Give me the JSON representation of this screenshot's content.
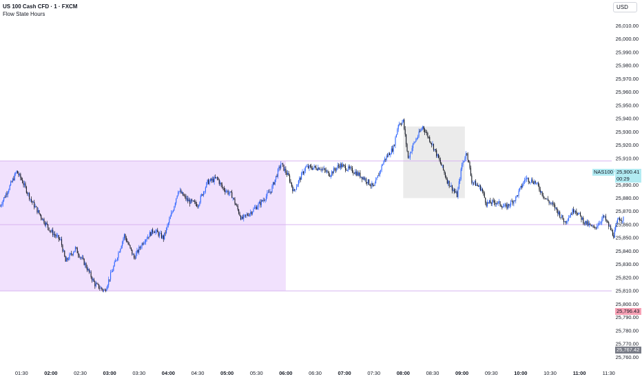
{
  "header": {
    "title": "US 100 Cash CFD · 1 · FXCM",
    "indicator": "Flow State Hours"
  },
  "currency_button": "USD",
  "colors": {
    "session_fill": "#f1e1fd",
    "session_line": "#d8b4f0",
    "box_fill": "#ebebeb",
    "up": "#2962ff",
    "down": "#131722",
    "symbol_badge_bg": "#b2ebf2",
    "low_badge_bg": "#f7a1b5",
    "prev_badge_bg": "#787b86"
  },
  "badges": {
    "symbol": "NAS100",
    "last_price": "25,900.41",
    "countdown": "00:29",
    "low_level": "25,796.43",
    "bottom_level": "25,767.42"
  },
  "chart_data": {
    "type": "candlestick",
    "y_ticks": [
      "26,010.00",
      "26,000.00",
      "25,990.00",
      "25,980.00",
      "25,970.00",
      "25,960.00",
      "25,950.00",
      "25,940.00",
      "25,930.00",
      "25,920.00",
      "25,910.00",
      "25,900.00",
      "25,890.00",
      "25,880.00",
      "25,870.00",
      "25,860.00",
      "25,850.00",
      "25,840.00",
      "25,830.00",
      "25,820.00",
      "25,810.00",
      "25,800.00",
      "25,790.00",
      "25,780.00",
      "25,770.00",
      "25,760.00"
    ],
    "x_ticks": [
      {
        "label": "01:30",
        "bold": false
      },
      {
        "label": "02:00",
        "bold": true
      },
      {
        "label": "02:30",
        "bold": false
      },
      {
        "label": "03:00",
        "bold": true
      },
      {
        "label": "03:30",
        "bold": false
      },
      {
        "label": "04:00",
        "bold": true
      },
      {
        "label": "04:30",
        "bold": false
      },
      {
        "label": "05:00",
        "bold": true
      },
      {
        "label": "05:30",
        "bold": false
      },
      {
        "label": "06:00",
        "bold": true
      },
      {
        "label": "06:30",
        "bold": false
      },
      {
        "label": "07:00",
        "bold": true
      },
      {
        "label": "07:30",
        "bold": false
      },
      {
        "label": "08:00",
        "bold": true
      },
      {
        "label": "08:30",
        "bold": false
      },
      {
        "label": "09:00",
        "bold": true
      },
      {
        "label": "09:30",
        "bold": false
      },
      {
        "label": "10:00",
        "bold": true
      },
      {
        "label": "10:30",
        "bold": false
      },
      {
        "label": "11:00",
        "bold": true
      },
      {
        "label": "11:30",
        "bold": false
      }
    ],
    "ylim": [
      25755,
      26018
    ],
    "x_start": "01:08",
    "x_minutes": 625,
    "session_zone": {
      "start": "01:08",
      "end": "06:00",
      "high": 25908,
      "low": 25810
    },
    "gray_box": {
      "start": "08:00",
      "end": "09:03",
      "high": 25934,
      "low": 25880
    },
    "levels": [
      25908,
      25860,
      25810
    ],
    "path": [
      [
        "01:08",
        25874
      ],
      [
        "01:20",
        25892
      ],
      [
        "01:25",
        25900
      ],
      [
        "01:30",
        25894
      ],
      [
        "01:40",
        25878
      ],
      [
        "01:50",
        25866
      ],
      [
        "02:00",
        25855
      ],
      [
        "02:10",
        25848
      ],
      [
        "02:15",
        25832
      ],
      [
        "02:25",
        25842
      ],
      [
        "02:35",
        25830
      ],
      [
        "02:45",
        25815
      ],
      [
        "02:55",
        25810
      ],
      [
        "03:05",
        25830
      ],
      [
        "03:15",
        25852
      ],
      [
        "03:25",
        25835
      ],
      [
        "03:35",
        25848
      ],
      [
        "03:45",
        25856
      ],
      [
        "03:55",
        25850
      ],
      [
        "04:05",
        25872
      ],
      [
        "04:10",
        25886
      ],
      [
        "04:20",
        25878
      ],
      [
        "04:30",
        25875
      ],
      [
        "04:40",
        25892
      ],
      [
        "04:50",
        25895
      ],
      [
        "04:55",
        25888
      ],
      [
        "05:05",
        25882
      ],
      [
        "05:15",
        25864
      ],
      [
        "05:25",
        25870
      ],
      [
        "05:35",
        25877
      ],
      [
        "05:45",
        25886
      ],
      [
        "05:55",
        25906
      ],
      [
        "06:03",
        25896
      ],
      [
        "06:08",
        25885
      ],
      [
        "06:20",
        25903
      ],
      [
        "06:35",
        25903
      ],
      [
        "06:45",
        25898
      ],
      [
        "06:55",
        25905
      ],
      [
        "07:10",
        25900
      ],
      [
        "07:20",
        25895
      ],
      [
        "07:30",
        25888
      ],
      [
        "07:40",
        25908
      ],
      [
        "07:50",
        25918
      ],
      [
        "07:55",
        25936
      ],
      [
        "08:00",
        25938
      ],
      [
        "08:05",
        25910
      ],
      [
        "08:10",
        25920
      ],
      [
        "08:20",
        25934
      ],
      [
        "08:30",
        25920
      ],
      [
        "08:40",
        25903
      ],
      [
        "08:45",
        25893
      ],
      [
        "08:55",
        25882
      ],
      [
        "09:00",
        25905
      ],
      [
        "09:05",
        25915
      ],
      [
        "09:10",
        25893
      ],
      [
        "09:20",
        25887
      ],
      [
        "09:25",
        25876
      ],
      [
        "09:35",
        25877
      ],
      [
        "09:45",
        25873
      ],
      [
        "09:55",
        25880
      ],
      [
        "10:05",
        25895
      ],
      [
        "10:15",
        25892
      ],
      [
        "10:25",
        25880
      ],
      [
        "10:35",
        25873
      ],
      [
        "10:45",
        25862
      ],
      [
        "10:55",
        25872
      ],
      [
        "11:05",
        25862
      ],
      [
        "11:15",
        25857
      ],
      [
        "11:25",
        25866
      ],
      [
        "11:35",
        25852
      ],
      [
        "11:40",
        25865
      ],
      [
        "11:45",
        25864
      ]
    ]
  }
}
